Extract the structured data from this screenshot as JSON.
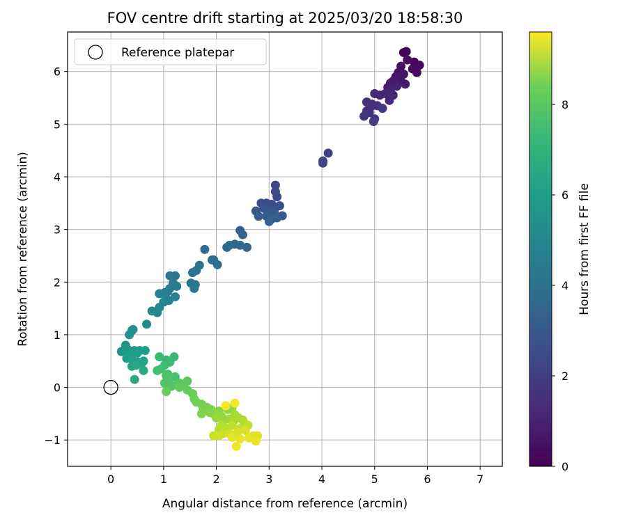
{
  "chart_data": {
    "type": "scatter",
    "title": "FOV centre drift starting at 2025/03/20 18:58:30",
    "xlabel": "Angular distance from reference (arcmin)",
    "ylabel": "Rotation from reference (arcmin)",
    "xlim": [
      -0.82,
      7.42
    ],
    "ylim": [
      -1.5,
      6.75
    ],
    "x_ticks": [
      0,
      1,
      2,
      3,
      4,
      5,
      6,
      7
    ],
    "y_ticks": [
      -1,
      0,
      1,
      2,
      3,
      4,
      5,
      6
    ],
    "grid": true,
    "legend": {
      "placement": "top-left",
      "entries": [
        "Reference platepar"
      ]
    },
    "reference_point": {
      "x": 0,
      "y": 0
    },
    "colorbar": {
      "label": "Hours from first FF file",
      "range": [
        0,
        9.6
      ],
      "ticks": [
        0,
        2,
        4,
        6,
        8
      ],
      "colormap": "viridis"
    },
    "series": [
      {
        "points": [
          [
            5.55,
            6.36,
            0.05
          ],
          [
            5.6,
            6.38,
            0.1
          ],
          [
            5.75,
            6.18,
            0.15
          ],
          [
            5.85,
            6.12,
            0.2
          ],
          [
            5.72,
            6.05,
            0.25
          ],
          [
            5.8,
            5.98,
            0.3
          ],
          [
            5.62,
            6.22,
            0.35
          ],
          [
            5.5,
            6.1,
            0.4
          ],
          [
            5.45,
            5.98,
            0.45
          ],
          [
            5.55,
            5.95,
            0.5
          ],
          [
            5.4,
            5.9,
            0.55
          ],
          [
            5.5,
            5.82,
            0.6
          ],
          [
            5.58,
            5.76,
            0.65
          ],
          [
            5.35,
            5.82,
            0.7
          ],
          [
            5.3,
            5.78,
            0.75
          ],
          [
            5.25,
            5.7,
            0.8
          ],
          [
            5.42,
            5.72,
            0.85
          ],
          [
            5.3,
            5.62,
            0.9
          ],
          [
            5.2,
            5.58,
            0.95
          ],
          [
            5.1,
            5.55,
            1.0
          ],
          [
            5.35,
            5.55,
            1.05
          ],
          [
            5.28,
            5.45,
            1.1
          ],
          [
            5.0,
            5.58,
            1.15
          ],
          [
            4.95,
            5.38,
            1.2
          ],
          [
            4.85,
            5.42,
            1.25
          ],
          [
            4.92,
            5.32,
            1.3
          ],
          [
            5.05,
            5.35,
            1.35
          ],
          [
            4.85,
            5.25,
            1.4
          ],
          [
            4.9,
            5.22,
            1.45
          ],
          [
            4.8,
            5.15,
            1.5
          ],
          [
            5.0,
            5.1,
            1.55
          ],
          [
            5.15,
            5.3,
            1.6
          ],
          [
            4.98,
            5.05,
            1.65
          ],
          [
            4.12,
            4.45,
            1.9
          ],
          [
            4.02,
            4.3,
            1.95
          ],
          [
            4.02,
            4.26,
            2.0
          ],
          [
            3.12,
            3.84,
            2.05
          ],
          [
            3.12,
            3.72,
            2.1
          ],
          [
            3.15,
            3.62,
            2.15
          ],
          [
            2.95,
            3.5,
            2.2
          ],
          [
            2.85,
            3.5,
            2.25
          ],
          [
            3.05,
            3.48,
            2.3
          ],
          [
            3.0,
            3.45,
            2.35
          ],
          [
            3.2,
            3.45,
            2.4
          ],
          [
            3.1,
            3.38,
            2.45
          ],
          [
            2.9,
            3.4,
            2.5
          ],
          [
            2.75,
            3.35,
            2.55
          ],
          [
            3.0,
            3.32,
            2.6
          ],
          [
            3.1,
            3.3,
            2.65
          ],
          [
            3.25,
            3.26,
            2.7
          ],
          [
            2.95,
            3.25,
            2.75
          ],
          [
            2.8,
            3.25,
            2.8
          ],
          [
            3.05,
            3.2,
            2.85
          ],
          [
            3.15,
            3.22,
            2.9
          ],
          [
            3.0,
            3.15,
            2.95
          ],
          [
            2.45,
            2.98,
            3.0
          ],
          [
            2.5,
            2.9,
            3.05
          ],
          [
            2.35,
            2.72,
            3.1
          ],
          [
            2.45,
            2.7,
            3.15
          ],
          [
            2.58,
            2.66,
            3.2
          ],
          [
            2.25,
            2.7,
            3.25
          ],
          [
            2.2,
            2.66,
            3.3
          ],
          [
            1.95,
            2.42,
            3.35
          ],
          [
            1.78,
            2.62,
            3.4
          ],
          [
            1.92,
            2.42,
            3.45
          ],
          [
            2.02,
            2.33,
            3.5
          ],
          [
            1.68,
            2.32,
            3.55
          ],
          [
            1.62,
            2.22,
            3.6
          ],
          [
            1.55,
            2.18,
            3.65
          ],
          [
            1.52,
            1.98,
            3.7
          ],
          [
            1.6,
            1.95,
            3.75
          ],
          [
            1.58,
            1.88,
            3.8
          ],
          [
            1.22,
            2.12,
            3.85
          ],
          [
            1.12,
            2.12,
            3.9
          ],
          [
            1.18,
            1.98,
            3.95
          ],
          [
            1.25,
            1.92,
            4.0
          ],
          [
            1.12,
            1.88,
            4.05
          ],
          [
            1.08,
            1.82,
            4.1
          ],
          [
            1.02,
            1.8,
            4.15
          ],
          [
            0.92,
            1.78,
            4.2
          ],
          [
            1.22,
            1.72,
            4.25
          ],
          [
            1.05,
            1.68,
            4.3
          ],
          [
            1.1,
            1.65,
            4.35
          ],
          [
            1.0,
            1.62,
            4.4
          ],
          [
            0.92,
            1.52,
            4.45
          ],
          [
            0.78,
            1.45,
            4.5
          ],
          [
            0.88,
            1.42,
            4.55
          ],
          [
            0.68,
            1.2,
            4.6
          ],
          [
            0.42,
            1.1,
            4.7
          ],
          [
            0.4,
            1.08,
            4.75
          ],
          [
            0.35,
            1.0,
            4.8
          ],
          [
            0.28,
            0.8,
            4.9
          ],
          [
            0.25,
            0.7,
            4.95
          ],
          [
            0.2,
            0.68,
            5.0
          ],
          [
            0.32,
            0.72,
            5.05
          ],
          [
            0.45,
            0.7,
            5.1
          ],
          [
            0.35,
            0.65,
            5.15
          ],
          [
            0.55,
            0.7,
            5.2
          ],
          [
            0.5,
            0.65,
            5.25
          ],
          [
            0.65,
            0.7,
            5.3
          ],
          [
            0.38,
            0.6,
            5.35
          ],
          [
            0.3,
            0.55,
            5.4
          ],
          [
            0.42,
            0.5,
            5.45
          ],
          [
            0.52,
            0.48,
            5.5
          ],
          [
            0.62,
            0.5,
            5.55
          ],
          [
            0.58,
            0.45,
            5.6
          ],
          [
            0.4,
            0.4,
            5.65
          ],
          [
            0.48,
            0.42,
            5.7
          ],
          [
            0.62,
            0.32,
            5.75
          ],
          [
            0.45,
            0.15,
            5.8
          ],
          [
            1.05,
            0.52,
            6.4
          ],
          [
            1.2,
            0.58,
            6.45
          ],
          [
            0.92,
            0.58,
            6.5
          ],
          [
            1.12,
            0.48,
            6.55
          ],
          [
            1.02,
            0.42,
            6.6
          ],
          [
            0.95,
            0.35,
            6.65
          ],
          [
            0.88,
            0.32,
            6.7
          ],
          [
            1.08,
            0.25,
            6.75
          ],
          [
            1.22,
            0.2,
            6.8
          ],
          [
            1.05,
            0.22,
            6.85
          ],
          [
            1.1,
            0.1,
            6.9
          ],
          [
            1.02,
            0.08,
            6.95
          ],
          [
            1.15,
            0.02,
            7.0
          ],
          [
            1.25,
            0.05,
            7.05
          ],
          [
            1.3,
            0.08,
            7.1
          ],
          [
            1.45,
            0.12,
            7.15
          ],
          [
            1.38,
            0.05,
            7.2
          ],
          [
            1.3,
            0.0,
            7.25
          ],
          [
            1.45,
            -0.05,
            7.3
          ],
          [
            1.55,
            -0.12,
            7.35
          ],
          [
            1.05,
            -0.08,
            7.4
          ],
          [
            1.58,
            -0.22,
            7.45
          ],
          [
            1.62,
            -0.28,
            7.5
          ],
          [
            1.72,
            -0.32,
            7.55
          ],
          [
            1.82,
            -0.38,
            7.6
          ],
          [
            1.75,
            -0.42,
            7.65
          ],
          [
            1.9,
            -0.42,
            7.7
          ],
          [
            1.72,
            -0.5,
            7.75
          ],
          [
            1.88,
            -0.48,
            7.8
          ],
          [
            1.95,
            -0.5,
            7.85
          ],
          [
            2.05,
            -0.45,
            7.9
          ],
          [
            2.22,
            -0.42,
            7.95
          ],
          [
            2.3,
            -0.38,
            8.0
          ],
          [
            2.1,
            -0.55,
            8.05
          ],
          [
            2.0,
            -0.58,
            8.1
          ],
          [
            2.15,
            -0.62,
            8.15
          ],
          [
            2.25,
            -0.6,
            8.2
          ],
          [
            2.35,
            -0.52,
            8.25
          ],
          [
            2.32,
            -0.65,
            8.3
          ],
          [
            2.42,
            -0.58,
            8.35
          ],
          [
            2.5,
            -0.62,
            8.4
          ],
          [
            2.55,
            -0.7,
            8.45
          ],
          [
            2.1,
            -0.72,
            8.5
          ],
          [
            2.05,
            -0.8,
            8.55
          ],
          [
            2.2,
            -0.78,
            8.6
          ],
          [
            2.3,
            -0.72,
            8.65
          ],
          [
            2.45,
            -0.78,
            8.7
          ],
          [
            2.6,
            -0.72,
            8.75
          ],
          [
            2.12,
            -0.88,
            8.8
          ],
          [
            1.95,
            -0.92,
            8.85
          ],
          [
            2.05,
            -0.92,
            8.9
          ],
          [
            2.25,
            -0.88,
            8.95
          ],
          [
            2.4,
            -0.85,
            9.0
          ],
          [
            2.55,
            -0.82,
            9.05
          ],
          [
            2.7,
            -0.92,
            9.1
          ],
          [
            2.78,
            -0.92,
            9.15
          ],
          [
            2.62,
            -0.96,
            9.2
          ],
          [
            2.3,
            -0.95,
            9.25
          ],
          [
            2.45,
            -0.98,
            9.3
          ],
          [
            2.75,
            -1.02,
            9.35
          ],
          [
            2.38,
            -1.12,
            9.4
          ],
          [
            2.35,
            -0.3,
            9.45
          ],
          [
            2.18,
            -0.35,
            9.5
          ]
        ]
      }
    ]
  }
}
